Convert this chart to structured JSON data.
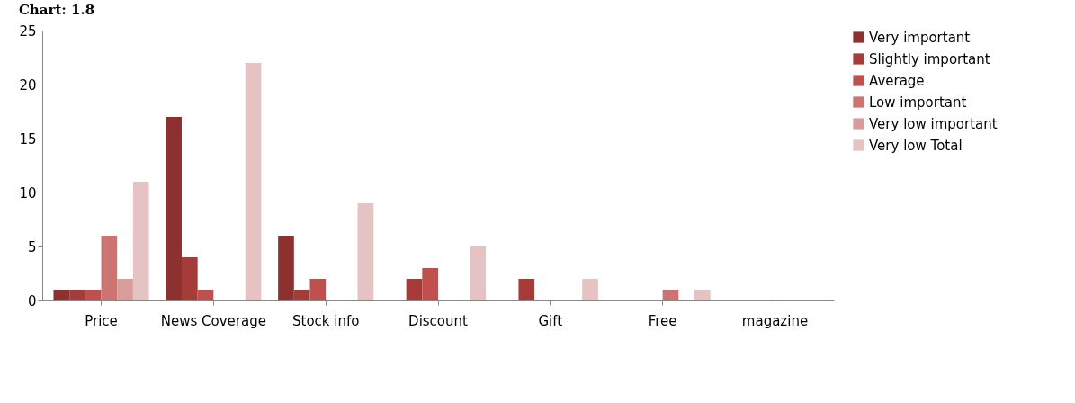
{
  "chart_data": {
    "type": "bar",
    "title": "Chart: 1.8",
    "categories": [
      "Price",
      "News Coverage",
      "Stock info",
      "Discount",
      "Gift",
      "Free",
      "magazine"
    ],
    "series": [
      {
        "name": "Very important",
        "color": "#8c3130",
        "values": [
          1,
          17,
          6,
          0,
          0,
          0,
          null
        ]
      },
      {
        "name": "Slightly important",
        "color": "#a63c3a",
        "values": [
          1,
          4,
          1,
          2,
          2,
          0,
          null
        ]
      },
      {
        "name": "Average",
        "color": "#c0504d",
        "values": [
          1,
          1,
          2,
          3,
          0,
          0,
          null
        ]
      },
      {
        "name": "Low important",
        "color": "#cd7371",
        "values": [
          6,
          0,
          0,
          0,
          0,
          1,
          null
        ]
      },
      {
        "name": "Very low important",
        "color": "#d99c9b",
        "values": [
          2,
          0,
          0,
          0,
          0,
          0,
          null
        ]
      },
      {
        "name": "Very low Total",
        "color": "#e5c3c3",
        "values": [
          11,
          22,
          9,
          5,
          2,
          1,
          null
        ]
      }
    ],
    "ylim": [
      0,
      25
    ],
    "yticks": [
      0,
      5,
      10,
      15,
      20,
      25
    ],
    "legend": "top right"
  }
}
